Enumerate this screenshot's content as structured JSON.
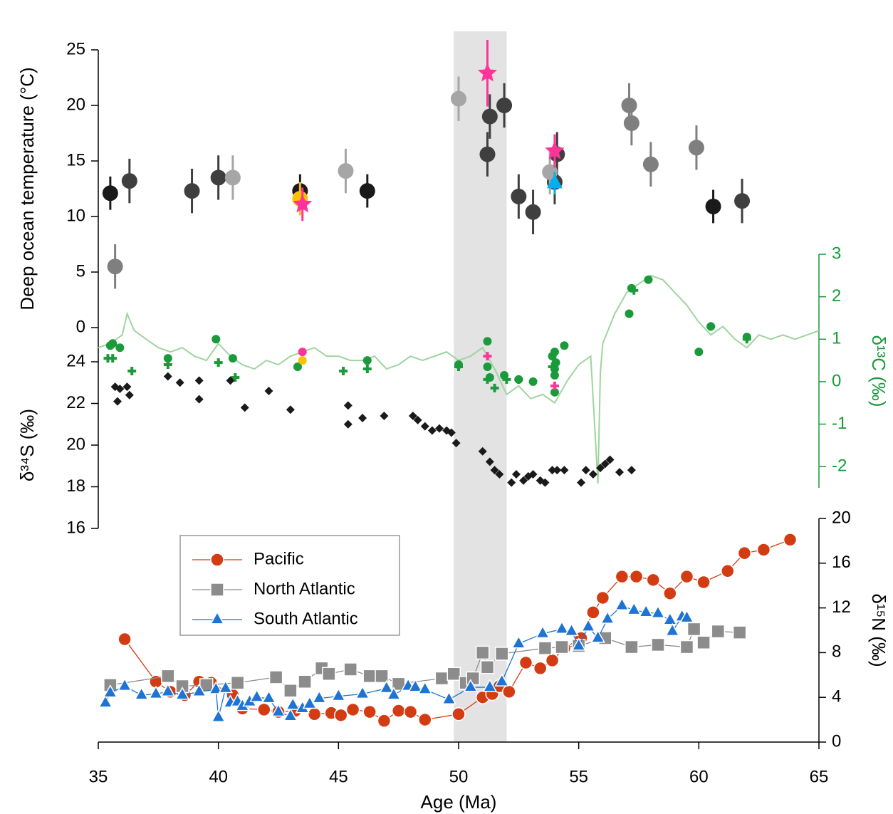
{
  "chart_data": [
    {
      "type": "scatter",
      "ylabel": "Deep ocean temperature (°C)",
      "ylim": [
        0,
        25
      ],
      "yticks": [
        0,
        5,
        10,
        15,
        20,
        25
      ],
      "span": [
        49.8,
        52.0
      ],
      "span_color": "#e3e3e3",
      "series": [
        {
          "marker": "circle",
          "color": "#1a1a1a",
          "x": [
            35.5,
            43.4,
            46.2,
            60.6
          ],
          "values": [
            12.1,
            12.3,
            12.3,
            10.9
          ],
          "errors": [
            1.5,
            1.5,
            1.5,
            1.5
          ]
        },
        {
          "marker": "circle",
          "color": "#3f3f3f",
          "x": [
            36.3,
            38.9,
            40.0,
            51.2,
            51.3,
            51.9,
            52.5,
            53.1,
            54.0,
            54.1,
            61.8
          ],
          "values": [
            13.2,
            12.3,
            13.5,
            15.6,
            19.0,
            20.0,
            11.8,
            10.4,
            13.1,
            15.6,
            11.4
          ],
          "errors": [
            2,
            2,
            2,
            2,
            2,
            2,
            2,
            2,
            2,
            2,
            2
          ]
        },
        {
          "marker": "circle",
          "color": "#7f7f7f",
          "x": [
            35.7,
            57.1,
            57.2,
            58.0,
            59.9
          ],
          "values": [
            5.5,
            20.0,
            18.4,
            14.7,
            16.2
          ],
          "errors": [
            2,
            2,
            2,
            2,
            2
          ]
        },
        {
          "marker": "circle",
          "color": "#a6a6a6",
          "x": [
            40.6,
            45.3,
            50.0,
            53.8
          ],
          "values": [
            13.5,
            14.1,
            20.6,
            14.0
          ],
          "errors": [
            2,
            2,
            2,
            2
          ]
        },
        {
          "marker": "circle",
          "color": "#ffc000",
          "x": [
            43.4
          ],
          "values": [
            11.6
          ],
          "errors": [
            1.5
          ]
        },
        {
          "marker": "star",
          "color": "#ff3399",
          "x": [
            43.5,
            51.2,
            54.0
          ],
          "values": [
            11.1,
            22.9,
            15.9
          ],
          "errors": [
            1.5,
            3,
            1.5
          ]
        },
        {
          "marker": "triangle",
          "color": "#00b0f0",
          "x": [
            54.0
          ],
          "values": [
            13.0
          ],
          "errors": [
            1
          ]
        }
      ]
    },
    {
      "type": "scatter",
      "ylabel": "δ¹³C (‰)",
      "axis": "y2",
      "axis_color": "#1a9a3a",
      "ylim": [
        -2.5,
        3
      ],
      "yticks": [
        -2,
        -1,
        0,
        1,
        2,
        3
      ],
      "series": [
        {
          "marker": "line",
          "color": "#9fd49f",
          "x": [
            35,
            35.5,
            36,
            36.2,
            36.5,
            37,
            37.5,
            38,
            38.5,
            39,
            39.5,
            40,
            40.5,
            41,
            41.5,
            42,
            42.5,
            43,
            43.5,
            44,
            44.5,
            45,
            45.5,
            46,
            46.5,
            47,
            47.5,
            48,
            48.5,
            49,
            49.5,
            50,
            50.5,
            51,
            51.5,
            52,
            52.5,
            53,
            53.5,
            54,
            54.5,
            55,
            55.5,
            55.8,
            55.9,
            56,
            56.5,
            57,
            57.5,
            58,
            58.5,
            59,
            59.5,
            60,
            60.5,
            61,
            61.5,
            62,
            62.5,
            63,
            63.5,
            64,
            64.5,
            65
          ],
          "values": [
            0.8,
            0.9,
            1.1,
            1.6,
            1.2,
            1.0,
            0.8,
            0.7,
            0.8,
            0.6,
            0.5,
            0.9,
            0.6,
            0.4,
            0.3,
            0.5,
            0.4,
            0.6,
            0.7,
            0.8,
            0.6,
            0.6,
            0.5,
            0.5,
            0.6,
            0.3,
            0.4,
            0.6,
            0.5,
            0.6,
            0.7,
            0.5,
            0.6,
            0.8,
            0.3,
            -0.3,
            -0.1,
            -0.4,
            -0.3,
            -0.5,
            0.0,
            0.4,
            0.6,
            -2.4,
            0.2,
            0.9,
            1.6,
            2.1,
            2.3,
            2.5,
            2.4,
            2.1,
            1.8,
            1.4,
            1.1,
            1.3,
            1.0,
            0.8,
            1.1,
            1.0,
            1.1,
            1.0,
            1.1,
            1.2
          ]
        },
        {
          "marker": "circle",
          "color": "#1a9a3a",
          "x": [
            35.5,
            35.6,
            35.9,
            37.9,
            39.9,
            40.6,
            43.3,
            46.2,
            50.0,
            51.2,
            51.2,
            51.3,
            51.9,
            52.5,
            53.1,
            53.9,
            54.0,
            54.05,
            54.0,
            54.0,
            54.0,
            54.4,
            57.1,
            57.2,
            57.9,
            60.0,
            60.5,
            62.0
          ],
          "values": [
            0.85,
            0.9,
            0.8,
            0.55,
            1.0,
            0.55,
            0.35,
            0.5,
            0.4,
            0.95,
            0.35,
            0.1,
            0.15,
            0.05,
            0.0,
            0.6,
            0.7,
            0.45,
            0.3,
            0.15,
            -0.25,
            0.85,
            1.6,
            2.2,
            2.4,
            0.7,
            1.3,
            1.05
          ]
        },
        {
          "marker": "cross",
          "color": "#1a9a3a",
          "x": [
            35.4,
            35.6,
            36.4,
            37.9,
            40.0,
            40.7,
            45.2,
            46.2,
            50.0,
            51.2,
            51.5,
            52.0,
            52.5,
            53.9,
            57.3,
            60.5,
            62.0
          ],
          "values": [
            0.55,
            0.55,
            0.25,
            0.4,
            0.45,
            0.1,
            0.25,
            0.3,
            0.35,
            0.05,
            -0.15,
            0.05,
            0.05,
            0.35,
            2.15,
            1.3,
            1.0
          ]
        },
        {
          "marker": "circle",
          "color": "#ff3399",
          "x": [
            43.5
          ],
          "values": [
            0.7
          ]
        },
        {
          "marker": "circle",
          "color": "#ffc000",
          "x": [
            43.5
          ],
          "values": [
            0.5
          ]
        },
        {
          "marker": "cross",
          "color": "#ff3399",
          "x": [
            51.2,
            54.0
          ],
          "values": [
            0.6,
            -0.1
          ]
        }
      ]
    },
    {
      "type": "scatter",
      "ylabel": "δ³⁴S (‰)",
      "ylim": [
        16,
        24
      ],
      "yticks": [
        16,
        18,
        20,
        22,
        24
      ],
      "series": [
        {
          "marker": "diamond",
          "color": "#1a1a1a",
          "x": [
            35.7,
            35.8,
            35.9,
            36.2,
            36.3,
            37.9,
            38.4,
            39.2,
            39.2,
            40.5,
            41.1,
            42.1,
            43.0,
            45.4,
            45.4,
            46.0,
            46.9,
            48.1,
            48.3,
            48.6,
            48.9,
            49.2,
            49.5,
            49.7,
            49.9,
            51.0,
            51.3,
            51.5,
            51.7,
            52.2,
            52.4,
            52.7,
            52.9,
            53.1,
            53.4,
            53.6,
            53.9,
            54.1,
            54.4,
            55.1,
            55.3,
            55.6,
            55.9,
            56.1,
            56.3,
            56.7,
            57.2
          ],
          "values": [
            22.8,
            22.1,
            22.7,
            22.8,
            22.4,
            23.3,
            23.0,
            23.1,
            22.2,
            23.1,
            21.8,
            22.6,
            21.7,
            21.9,
            21.0,
            21.3,
            21.4,
            21.4,
            21.2,
            20.9,
            20.7,
            20.8,
            20.7,
            20.6,
            20.1,
            19.7,
            19.2,
            18.8,
            18.6,
            18.2,
            18.6,
            18.3,
            18.5,
            18.6,
            18.3,
            18.2,
            18.8,
            18.8,
            18.8,
            18.2,
            18.8,
            18.6,
            18.9,
            19.1,
            19.3,
            18.7,
            18.8
          ]
        }
      ]
    },
    {
      "type": "line",
      "ylabel": "δ¹⁵N (‰)",
      "axis": "y2",
      "ylim": [
        0,
        20
      ],
      "yticks": [
        0,
        4,
        8,
        12,
        16,
        20
      ],
      "xlabel": "Age (Ma)",
      "xlim": [
        35,
        65
      ],
      "xticks": [
        35,
        40,
        45,
        50,
        55,
        60,
        65
      ],
      "legend": "upper left",
      "series": [
        {
          "name": "Pacific",
          "marker": "circle",
          "color": "#d33c13",
          "x": [
            36.1,
            37.4,
            38.0,
            38.6,
            39.2,
            39.7,
            40.6,
            41.0,
            41.9,
            42.5,
            43.2,
            44.0,
            44.7,
            45.1,
            45.6,
            46.3,
            46.9,
            47.5,
            48.0,
            48.6,
            50.0,
            51.0,
            51.4,
            51.7,
            52.1,
            52.8,
            53.4,
            53.9,
            54.4,
            55.1,
            55.6,
            56.0,
            56.8,
            57.4,
            58.1,
            58.8,
            59.5,
            60.2,
            61.2,
            61.9,
            62.7,
            63.8
          ],
          "values": [
            9.2,
            5.4,
            4.5,
            4.2,
            5.4,
            5.3,
            4.2,
            3.0,
            2.9,
            2.7,
            2.8,
            2.5,
            2.6,
            2.4,
            2.9,
            2.7,
            1.9,
            2.8,
            2.7,
            2.0,
            2.5,
            4.0,
            4.3,
            5.0,
            4.5,
            7.1,
            6.6,
            7.3,
            8.4,
            9.3,
            11.6,
            12.9,
            14.8,
            14.8,
            14.5,
            13.3,
            14.8,
            14.3,
            15.3,
            16.9,
            17.2,
            18.1
          ]
        },
        {
          "name": "North Atlantic",
          "marker": "square",
          "color": "#8c8c8c",
          "x": [
            35.5,
            37.9,
            38.5,
            39.5,
            40.8,
            42.4,
            43.0,
            43.6,
            44.3,
            44.6,
            45.5,
            46.3,
            46.8,
            47.5,
            49.3,
            49.8,
            50.3,
            50.6,
            51.0,
            51.2,
            51.8,
            53.6,
            54.3,
            55.0,
            56.1,
            57.2,
            58.3,
            59.5,
            59.8,
            60.2,
            60.8,
            61.7
          ],
          "values": [
            5.1,
            5.9,
            5.0,
            5.1,
            5.3,
            5.8,
            4.6,
            5.4,
            6.6,
            6.1,
            6.5,
            5.9,
            5.9,
            5.2,
            5.7,
            6.1,
            5.3,
            5.7,
            8.0,
            6.7,
            7.9,
            8.4,
            8.5,
            8.6,
            9.3,
            8.5,
            8.7,
            8.5,
            10.1,
            8.9,
            9.9,
            9.8
          ]
        },
        {
          "name": "South Atlantic",
          "marker": "triangle",
          "color": "#1f74d3",
          "x": [
            35.3,
            35.5,
            36.1,
            36.8,
            37.4,
            37.9,
            38.5,
            39.2,
            39.9,
            40.0,
            40.3,
            40.5,
            40.8,
            41.0,
            41.3,
            41.6,
            42.1,
            42.5,
            43.0,
            43.1,
            43.5,
            43.8,
            44.2,
            45.0,
            46.0,
            47.0,
            47.3,
            47.9,
            48.2,
            48.6,
            49.6,
            50.5,
            51.3,
            51.8,
            52.5,
            53.5,
            54.3,
            54.7,
            55.0,
            55.4,
            55.8,
            56.2,
            56.8,
            57.3,
            57.8,
            58.3,
            58.8,
            58.9,
            59.3,
            59.5
          ],
          "values": [
            3.5,
            4.4,
            5.0,
            4.2,
            4.3,
            4.5,
            4.2,
            4.5,
            4.7,
            2.2,
            4.8,
            3.5,
            3.6,
            3.2,
            3.6,
            4.0,
            3.9,
            2.7,
            2.3,
            3.3,
            3.0,
            3.4,
            3.9,
            4.1,
            4.3,
            4.8,
            4.2,
            5.0,
            4.9,
            4.7,
            3.8,
            4.9,
            4.9,
            5.4,
            8.8,
            9.7,
            10.1,
            9.9,
            8.6,
            10.3,
            9.3,
            11.0,
            12.2,
            11.8,
            11.6,
            11.5,
            10.9,
            9.9,
            11.2,
            11.1
          ]
        }
      ]
    }
  ]
}
